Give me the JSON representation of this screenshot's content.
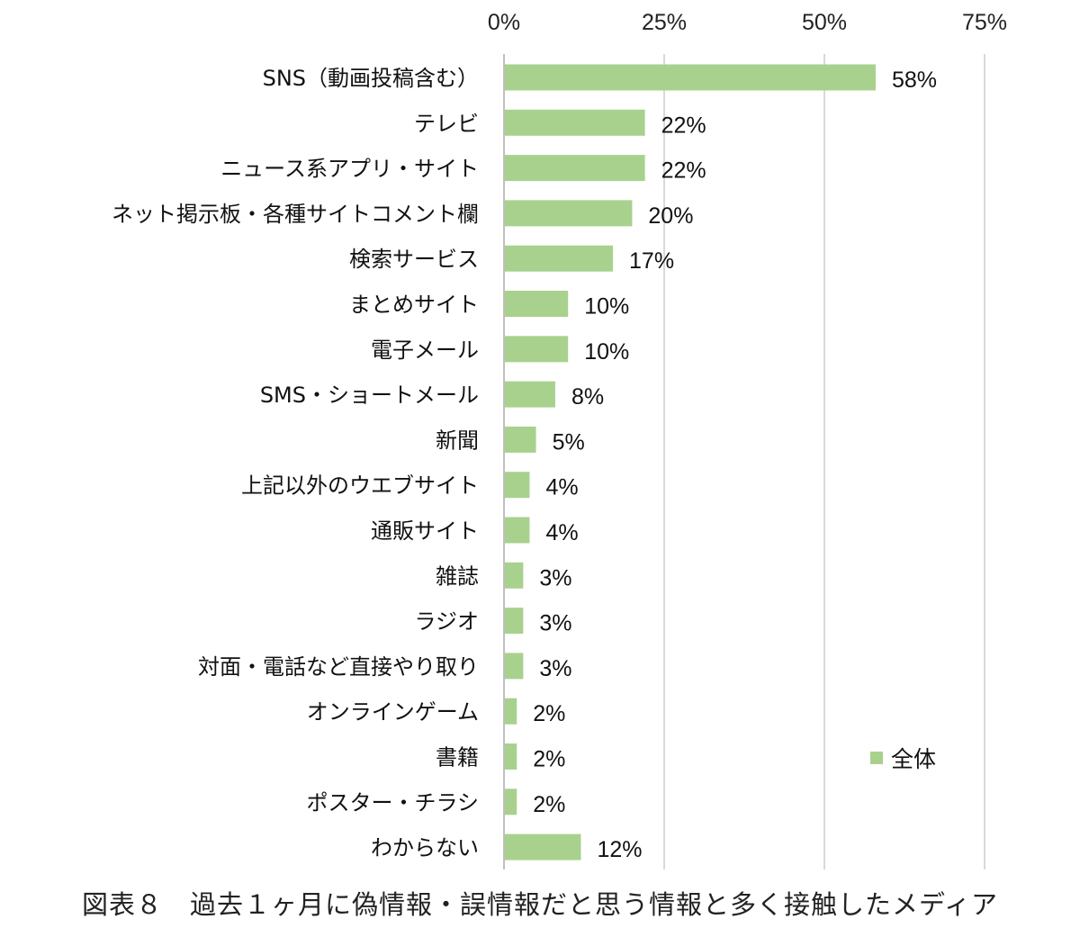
{
  "chart_data": {
    "type": "bar",
    "orientation": "horizontal",
    "categories": [
      "SNS（動画投稿含む）",
      "テレビ",
      "ニュース系アプリ・サイト",
      "ネット掲示板・各種サイトコメント欄",
      "検索サービス",
      "まとめサイト",
      "電子メール",
      "SMS・ショートメール",
      "新聞",
      "上記以外のウエブサイト",
      "通販サイト",
      "雑誌",
      "ラジオ",
      "対面・電話など直接やり取り",
      "オンラインゲーム",
      "書籍",
      "ポスター・チラシ",
      "わからない"
    ],
    "values": [
      58,
      22,
      22,
      20,
      17,
      10,
      10,
      8,
      5,
      4,
      4,
      3,
      3,
      3,
      2,
      2,
      2,
      12
    ],
    "value_labels": [
      "58%",
      "22%",
      "22%",
      "20%",
      "17%",
      "10%",
      "10%",
      "8%",
      "5%",
      "4%",
      "4%",
      "3%",
      "3%",
      "3%",
      "2%",
      "2%",
      "2%",
      "12%"
    ],
    "x_ticks": [
      0,
      25,
      50,
      75
    ],
    "x_tick_labels": [
      "0%",
      "25%",
      "50%",
      "75%"
    ],
    "xlim": [
      0,
      75
    ],
    "series": [
      {
        "name": "全体",
        "color": "#a9d18e"
      }
    ],
    "legend_position": "right",
    "grid": true,
    "xlabel": "",
    "ylabel": "",
    "title": "図表８　過去１ヶ月に偽情報・誤情報だと思う情報と多く接触したメディア"
  }
}
